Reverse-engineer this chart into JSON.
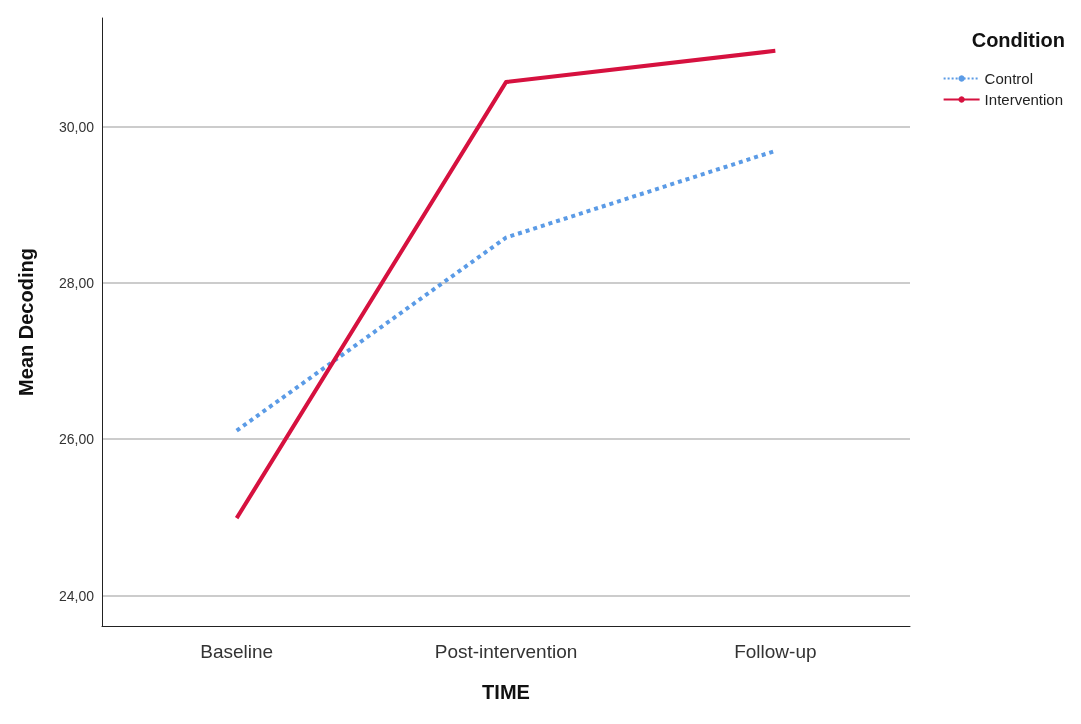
{
  "chart_data": {
    "type": "line",
    "xlabel": "TIME",
    "ylabel": "Mean Decoding",
    "legend_title": "Condition",
    "categories": [
      "Baseline",
      "Post-intervention",
      "Follow-up"
    ],
    "series": [
      {
        "name": "Control",
        "color": "#5b9be6",
        "line_style": "dotted",
        "values": [
          26.11,
          28.58,
          29.69
        ]
      },
      {
        "name": "Intervention",
        "color": "#d6113f",
        "line_style": "solid",
        "values": [
          24.99,
          30.57,
          30.97
        ]
      }
    ],
    "ylim": [
      23.61,
      31.39
    ],
    "yticks": [
      {
        "value": 24,
        "label": "24,00"
      },
      {
        "value": 26,
        "label": "26,00"
      },
      {
        "value": 28,
        "label": "28,00"
      },
      {
        "value": 30,
        "label": "30,00"
      }
    ],
    "grid": "y",
    "legend": "top right",
    "marker": "none"
  }
}
